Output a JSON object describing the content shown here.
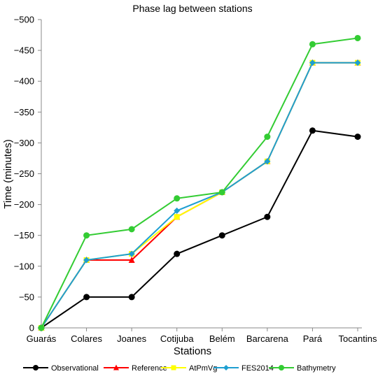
{
  "chart_data": {
    "type": "line",
    "title": "Phase lag between stations",
    "xlabel": "Stations",
    "ylabel": "Time (minutes)",
    "categories": [
      "Guarás",
      "Colares",
      "Joanes",
      "Cotijuba",
      "Belém",
      "Barcarena",
      "Pará",
      "Tocantins"
    ],
    "ylim": [
      0,
      -500
    ],
    "yaxis_inverted": true,
    "yticks": [
      0,
      -50,
      -100,
      -150,
      -200,
      -250,
      -300,
      -350,
      -400,
      -450,
      -500
    ],
    "grid": false,
    "legend_position": "bottom",
    "series": [
      {
        "name": "Observational",
        "color": "#000000",
        "marker": "circle",
        "values": [
          0,
          -50,
          -50,
          -120,
          -150,
          -180,
          -320,
          -310
        ]
      },
      {
        "name": "Reference",
        "color": "#ff0000",
        "marker": "triangle",
        "values": [
          0,
          -110,
          -110,
          -180,
          -220,
          -270,
          -430,
          -430
        ]
      },
      {
        "name": "AtPmVg",
        "color": "#ffff00",
        "marker": "square",
        "values": [
          0,
          -110,
          -120,
          -180,
          -220,
          -270,
          -430,
          -430
        ]
      },
      {
        "name": "FES2014",
        "color": "#1e9fd1",
        "marker": "diamond",
        "values": [
          0,
          -110,
          -120,
          -190,
          -220,
          -270,
          -430,
          -430
        ]
      },
      {
        "name": "Bathymetry",
        "color": "#33cc33",
        "marker": "circle",
        "values": [
          0,
          -150,
          -160,
          -210,
          -220,
          -310,
          -460,
          -470
        ]
      }
    ]
  }
}
